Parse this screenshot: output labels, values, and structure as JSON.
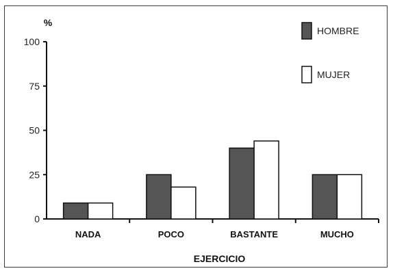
{
  "chart_data": {
    "type": "bar",
    "categories": [
      "NADA",
      "POCO",
      "BASTANTE",
      "MUCHO"
    ],
    "series": [
      {
        "name": "HOMBRE",
        "values": [
          9,
          25,
          40,
          25
        ],
        "color": "#555555"
      },
      {
        "name": "MUJER",
        "values": [
          9,
          18,
          44,
          25
        ],
        "color": "#ffffff"
      }
    ],
    "xlabel": "EJERCICIO",
    "ylabel": "%",
    "ylim": [
      0,
      100
    ],
    "yticks": [
      "0",
      "25",
      "50",
      "75",
      "100"
    ],
    "grid": false,
    "legend": "top-right"
  }
}
